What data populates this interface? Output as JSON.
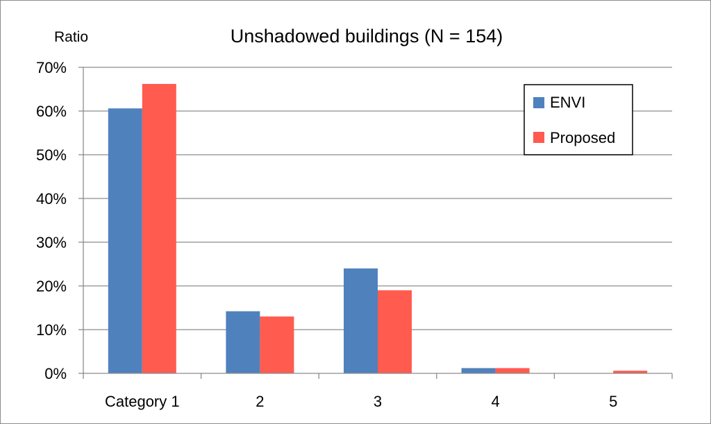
{
  "chart_data": {
    "type": "bar",
    "title": "Unshadowed buildings (N = 154)",
    "xlabel": "",
    "ylabel": "Ratio",
    "categories": [
      "Category 1",
      "2",
      "3",
      "4",
      "5"
    ],
    "series": [
      {
        "name": "ENVI",
        "color": "#4F81BD",
        "values": [
          60.6,
          14.2,
          24.0,
          1.2,
          0.0
        ]
      },
      {
        "name": "Proposed",
        "color": "#FF5B4F",
        "values": [
          66.2,
          13.0,
          19.0,
          1.2,
          0.6
        ]
      }
    ],
    "ylim": [
      0,
      70
    ],
    "yticks": [
      "0%",
      "10%",
      "20%",
      "30%",
      "40%",
      "50%",
      "60%",
      "70%"
    ],
    "grid": true,
    "legend_position": "top-right"
  }
}
